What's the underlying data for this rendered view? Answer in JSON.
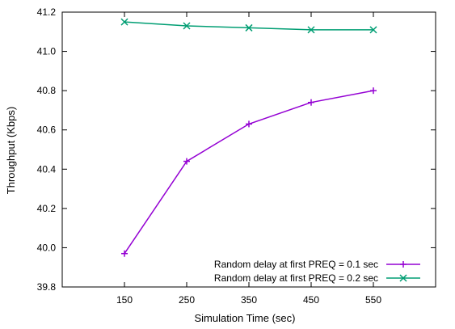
{
  "chart_data": {
    "type": "line",
    "title": "",
    "xlabel": "Simulation Time (sec)",
    "ylabel": "Throughput (Kbps)",
    "x": [
      150,
      250,
      350,
      450,
      550
    ],
    "xlim": [
      50,
      650
    ],
    "ylim": [
      39.8,
      41.2
    ],
    "xticks": [
      "150",
      "250",
      "350",
      "450",
      "550"
    ],
    "yticks": [
      "39.8",
      "40.0",
      "40.2",
      "40.4",
      "40.6",
      "40.8",
      "41.0",
      "41.2"
    ],
    "grid": false,
    "legend_position": "bottom-right",
    "series": [
      {
        "name": "Random delay at first PREQ = 0.1 sec",
        "values": [
          39.97,
          40.44,
          40.63,
          40.74,
          40.8
        ],
        "color": "#9400d3",
        "marker": "plus"
      },
      {
        "name": "Random delay at first PREQ = 0.2 sec",
        "values": [
          41.15,
          41.13,
          41.12,
          41.11,
          41.11
        ],
        "color": "#009e73",
        "marker": "cross"
      }
    ]
  }
}
